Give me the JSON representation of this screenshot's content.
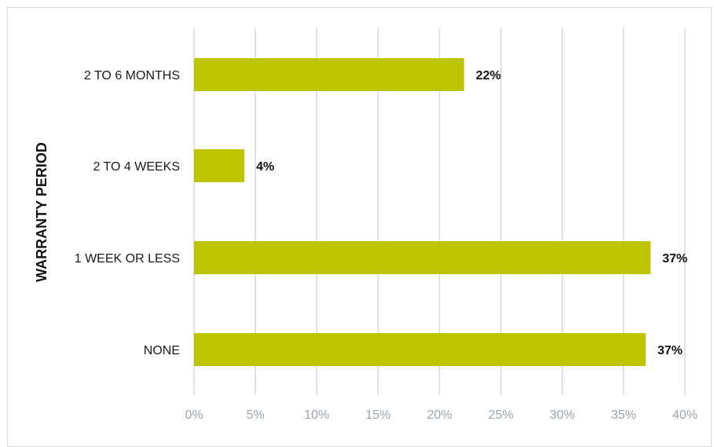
{
  "chart_data": {
    "type": "bar",
    "orientation": "horizontal",
    "categories": [
      "2 TO 6 MONTHS",
      "2 TO 4 WEEKS",
      "1 WEEK OR LESS",
      "NONE"
    ],
    "values": [
      22,
      4,
      37,
      37
    ],
    "plotted_values": [
      22.0,
      4.1,
      37.2,
      36.8
    ],
    "data_labels": [
      "22%",
      "4%",
      "37%",
      "37%"
    ],
    "ylabel": "WARRANTY PERIOD",
    "xlabel": "",
    "xlim": [
      0,
      40
    ],
    "x_ticks": [
      0,
      5,
      10,
      15,
      20,
      25,
      30,
      35,
      40
    ],
    "x_tick_labels": [
      "0%",
      "5%",
      "10%",
      "15%",
      "20%",
      "25%",
      "30%",
      "35%",
      "40%"
    ],
    "grid": "vertical",
    "legend": "none",
    "colors": {
      "bar": "#bdc400",
      "grid": "#d9d9d9",
      "tick_text": "#9aa4b0",
      "text": "#111111"
    }
  }
}
